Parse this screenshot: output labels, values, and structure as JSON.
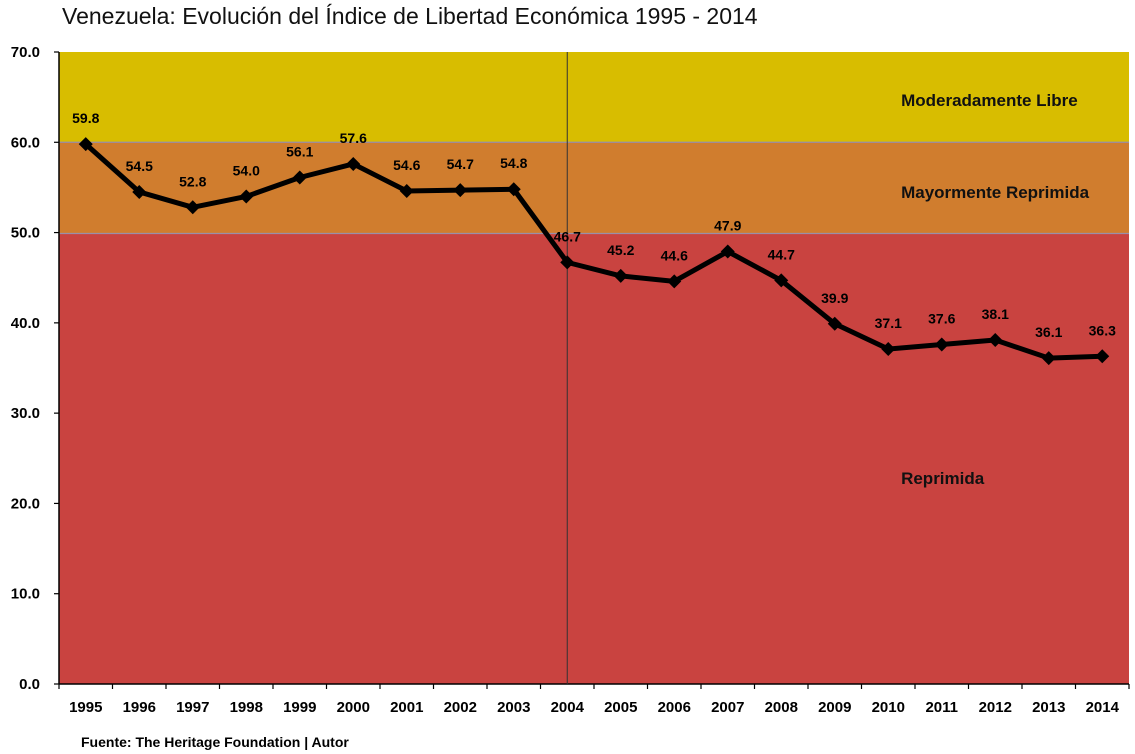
{
  "chart_data": {
    "type": "line",
    "title": "Venezuela: Evolución del Índice de Libertad Económica  1995 - 2014",
    "source": "Fuente: The Heritage Foundation  |  Autor",
    "xlabel": "",
    "ylabel": "",
    "ylim": [
      0,
      70
    ],
    "yticks": [
      "0.0",
      "10.0",
      "20.0",
      "30.0",
      "40.0",
      "50.0",
      "60.0",
      "70.0"
    ],
    "categories": [
      "1995",
      "1996",
      "1997",
      "1998",
      "1999",
      "2000",
      "2001",
      "2002",
      "2003",
      "2004",
      "2005",
      "2006",
      "2007",
      "2008",
      "2009",
      "2010",
      "2011",
      "2012",
      "2013",
      "2014"
    ],
    "series": [
      {
        "values": [
          59.8,
          54.5,
          52.8,
          54.0,
          56.1,
          57.6,
          54.6,
          54.7,
          54.8,
          46.7,
          45.2,
          44.6,
          47.9,
          44.7,
          39.9,
          37.1,
          37.6,
          38.1,
          36.1,
          36.3
        ],
        "labels": [
          "59.8",
          "54.5",
          "52.8",
          "54.0",
          "56.1",
          "57.6",
          "54.6",
          "54.7",
          "54.8",
          "46.7",
          "45.2",
          "44.6",
          "47.9",
          "44.7",
          "39.9",
          "37.1",
          "37.6",
          "38.1",
          "36.1",
          "36.3"
        ],
        "color": "#000000"
      }
    ],
    "bands": [
      {
        "label": "Reprimida",
        "from": 0,
        "to": 49.9,
        "color": "#c94340"
      },
      {
        "label": "Mayormente Reprimida",
        "from": 49.9,
        "to": 60,
        "color": "#d07d2e"
      },
      {
        "label": "Moderadamente Libre",
        "from": 60,
        "to": 70,
        "color": "#d8bd00"
      }
    ],
    "reference_line": {
      "category": "2004",
      "color": "#333333"
    },
    "grid": false
  }
}
